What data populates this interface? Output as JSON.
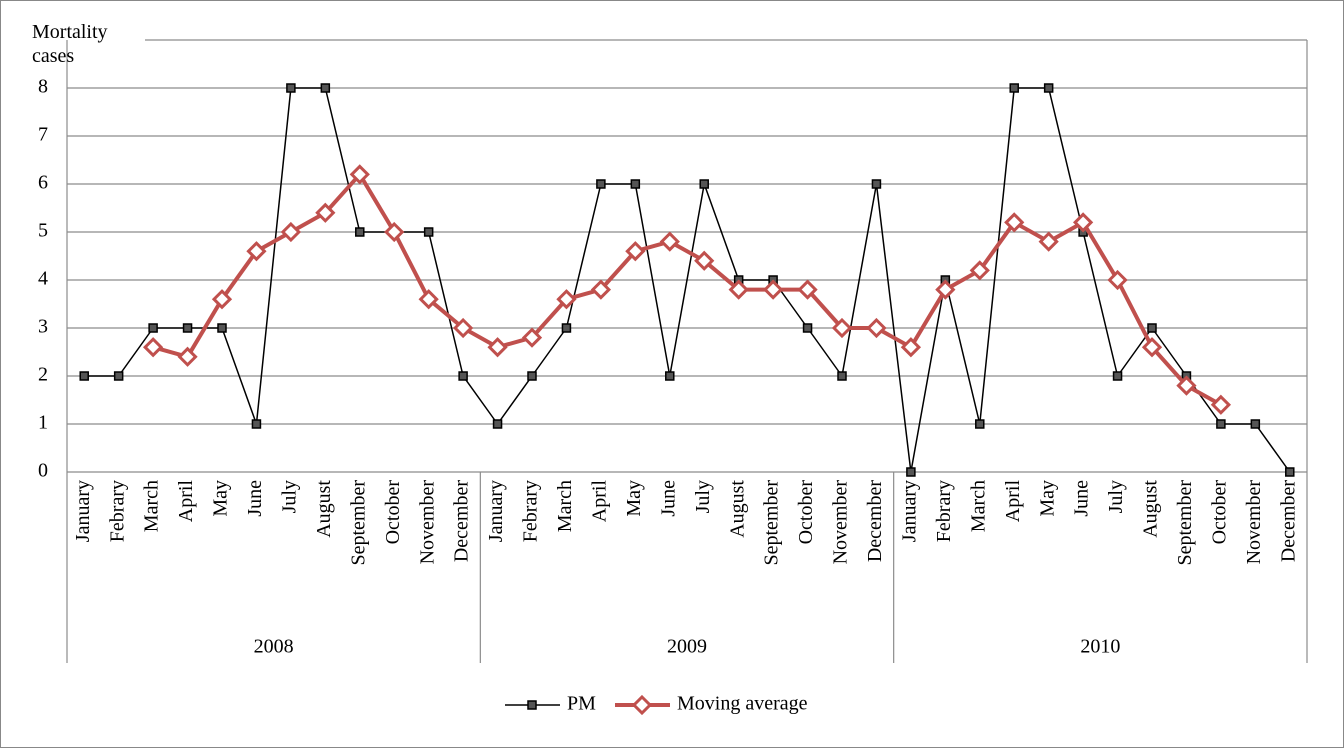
{
  "chart_data": {
    "type": "line",
    "y_label": "Mortality cases",
    "categories": [
      "January",
      "Febrary",
      "March",
      "April",
      "May",
      "June",
      "July",
      "August",
      "September",
      "October",
      "November",
      "December",
      "January",
      "Febrary",
      "March",
      "April",
      "May",
      "June",
      "July",
      "August",
      "September",
      "October",
      "November",
      "December",
      "January",
      "Febrary",
      "March",
      "April",
      "May",
      "June",
      "July",
      "August",
      "September",
      "October",
      "November",
      "December"
    ],
    "category_groups": [
      "2008",
      "2009",
      "2010"
    ],
    "series": [
      {
        "name": "PM",
        "color": "#000000",
        "marker": "square",
        "values": [
          2,
          2,
          3,
          3,
          3,
          1,
          8,
          8,
          5,
          5,
          5,
          2,
          1,
          2,
          3,
          6,
          6,
          2,
          6,
          4,
          4,
          3,
          2,
          6,
          0,
          4,
          1,
          8,
          8,
          5,
          2,
          3,
          2,
          1,
          1,
          0
        ]
      },
      {
        "name": "Moving average",
        "color": "#c0504d",
        "marker": "diamond",
        "values": [
          null,
          null,
          2.6,
          2.4,
          3.6,
          4.6,
          5.0,
          5.4,
          6.2,
          5.0,
          3.6,
          3.0,
          2.6,
          2.8,
          3.6,
          3.8,
          4.6,
          4.8,
          4.4,
          3.8,
          3.8,
          3.8,
          3.0,
          3.0,
          2.6,
          3.8,
          4.2,
          5.2,
          4.8,
          5.2,
          4.0,
          2.6,
          1.8,
          1.4,
          null,
          null
        ]
      }
    ],
    "ylim": [
      0,
      9
    ],
    "yticks": [
      0,
      1,
      2,
      3,
      4,
      5,
      6,
      7,
      8
    ],
    "grid": true,
    "legend": "bottom"
  }
}
